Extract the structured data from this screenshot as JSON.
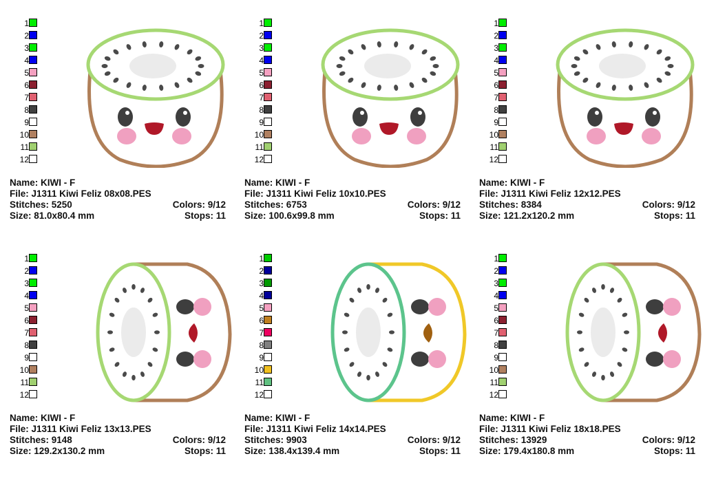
{
  "labels": {
    "name": "Name:",
    "file": "File:",
    "stitches": "Stitches:",
    "colors": "Colors:",
    "size": "Size:",
    "stops": "Stops:"
  },
  "designs": [
    {
      "name": "KIWI - F",
      "file": "J1311 Kiwi Feliz 08x08.PES",
      "stitches": "5250",
      "colors": "9/12",
      "size": "81.0x80.4 mm",
      "stops": "11",
      "orientation": "front",
      "palette": [
        "#00ee00",
        "#0000ee",
        "#00ee00",
        "#0000ee",
        "#f4a0c0",
        "#8b2030",
        "#e06070",
        "#404040",
        "#ffffff",
        "#b08060",
        "#a0d070",
        "#ffffff"
      ]
    },
    {
      "name": "KIWI - F",
      "file": "J1311 Kiwi Feliz 10x10.PES",
      "stitches": "6753",
      "colors": "9/12",
      "size": "100.6x99.8 mm",
      "stops": "11",
      "orientation": "front",
      "palette": [
        "#00ee00",
        "#0000ee",
        "#00ee00",
        "#0000ee",
        "#f4a0c0",
        "#8b2030",
        "#e06070",
        "#404040",
        "#ffffff",
        "#b08060",
        "#a0d070",
        "#ffffff"
      ]
    },
    {
      "name": "KIWI - F",
      "file": "J1311 Kiwi Feliz 12x12.PES",
      "stitches": "8384",
      "colors": "9/12",
      "size": "121.2x120.2 mm",
      "stops": "11",
      "orientation": "front",
      "palette": [
        "#00ee00",
        "#0000ee",
        "#00ee00",
        "#0000ee",
        "#f4a0c0",
        "#8b2030",
        "#e06070",
        "#404040",
        "#ffffff",
        "#b08060",
        "#a0d070",
        "#ffffff"
      ]
    },
    {
      "name": "KIWI - F",
      "file": "J1311 Kiwi Feliz 13x13.PES",
      "stitches": "9148",
      "colors": "9/12",
      "size": "129.2x130.2 mm",
      "stops": "11",
      "orientation": "side",
      "palette": [
        "#00ee00",
        "#0000ee",
        "#00ee00",
        "#0000ee",
        "#f4a0c0",
        "#8b2030",
        "#e06070",
        "#404040",
        "#ffffff",
        "#b08060",
        "#a0d070",
        "#ffffff"
      ]
    },
    {
      "name": "KIWI - F",
      "file": "J1311 Kiwi Feliz 14x14.PES",
      "stitches": "9903",
      "colors": "9/12",
      "size": "138.4x139.4 mm",
      "stops": "11",
      "orientation": "side",
      "palette": [
        "#00cc00",
        "#000099",
        "#009900",
        "#000099",
        "#f4a0c0",
        "#c08020",
        "#ee0060",
        "#808080",
        "#ffffff",
        "#f0c020",
        "#60c080",
        "#ffffff"
      ]
    },
    {
      "name": "KIWI - F",
      "file": "J1311 Kiwi Feliz 18x18.PES",
      "stitches": "13929",
      "colors": "9/12",
      "size": "179.4x180.8 mm",
      "stops": "11",
      "orientation": "side",
      "palette": [
        "#00ee00",
        "#0000ee",
        "#00ee00",
        "#0000ee",
        "#f4a0c0",
        "#8b2030",
        "#e06070",
        "#404040",
        "#ffffff",
        "#b08060",
        "#a0d070",
        "#ffffff"
      ]
    }
  ],
  "swatch_numbers": [
    "1",
    "2",
    "3",
    "4",
    "5",
    "6",
    "7",
    "8",
    "9",
    "10",
    "11",
    "12"
  ],
  "art_colors": {
    "rim_green": "#a6d873",
    "skin_brown": "#b07f58",
    "flesh": "#ffffff",
    "core": "#ebebeb",
    "seed": "#4a4a4a",
    "eye": "#3e3e3e",
    "cheek": "#f0a0c0",
    "mouth": "#b01828",
    "variant_rim": "#5cc48c",
    "variant_skin": "#f0c828",
    "variant_mouth": "#a06010"
  }
}
